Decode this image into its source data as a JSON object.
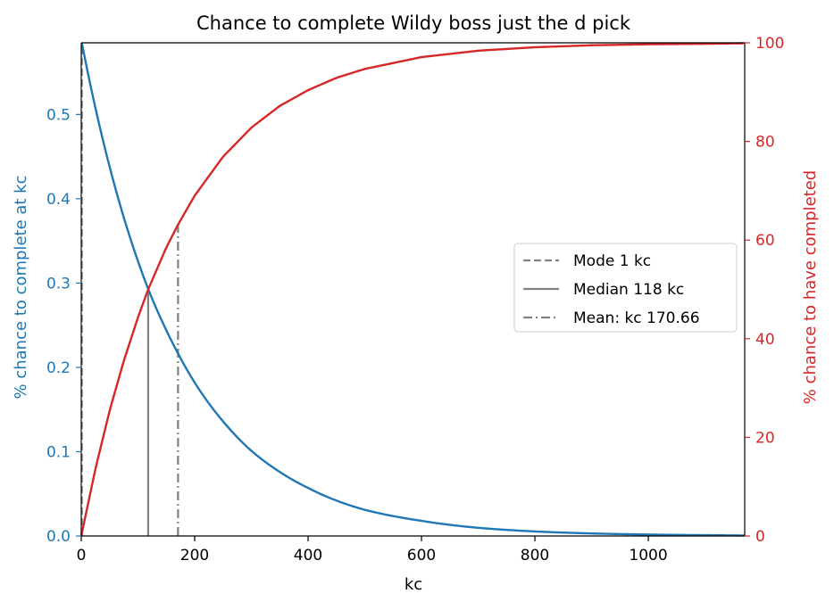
{
  "chart_data": {
    "type": "line",
    "title": "Chance to complete Wildy boss just the d pick",
    "xlabel": "kc",
    "ylabel_left": "% chance to complete at kc",
    "ylabel_right": "% chance to have completed",
    "xlim": [
      0,
      1170
    ],
    "ylim_left": [
      0,
      0.585
    ],
    "ylim_right": [
      0,
      100
    ],
    "x_ticks": [
      0,
      200,
      400,
      600,
      800,
      1000
    ],
    "y_left_ticks": [
      0.0,
      0.1,
      0.2,
      0.3,
      0.4,
      0.5
    ],
    "y_right_ticks": [
      0,
      20,
      40,
      60,
      80,
      100
    ],
    "grid": false,
    "legend_position": "center-right",
    "colors": {
      "left": "#1f77b4",
      "right": "#d62728",
      "marker": "#808080"
    },
    "series": [
      {
        "axis": "left",
        "color": "#1f77b4",
        "x": [
          1,
          50,
          100,
          118,
          150,
          171,
          200,
          250,
          300,
          350,
          400,
          450,
          500,
          600,
          700,
          800,
          900,
          1000,
          1100,
          1170
        ],
        "y": [
          0.585,
          0.438,
          0.326,
          0.293,
          0.244,
          0.216,
          0.182,
          0.136,
          0.101,
          0.076,
          0.057,
          0.042,
          0.031,
          0.018,
          0.0097,
          0.0054,
          0.003,
          0.0017,
          0.001,
          0.0006
        ]
      },
      {
        "axis": "right",
        "color": "#d62728",
        "x": [
          0,
          25,
          50,
          75,
          100,
          118,
          150,
          171,
          200,
          250,
          300,
          350,
          400,
          450,
          500,
          600,
          700,
          800,
          900,
          1000,
          1100,
          1170
        ],
        "y": [
          0,
          13.6,
          25.4,
          35.5,
          44.3,
          50.0,
          58.5,
          63.2,
          69.0,
          76.9,
          82.8,
          87.2,
          90.4,
          92.9,
          94.7,
          97.1,
          98.4,
          99.1,
          99.5,
          99.7,
          99.8,
          99.9
        ]
      }
    ],
    "markers": [
      {
        "label": "Mode 1 kc",
        "x": 1,
        "style": "dashed"
      },
      {
        "label": "Median 118 kc",
        "x": 118,
        "style": "solid"
      },
      {
        "label": "Mean: kc 170.66",
        "x": 170.66,
        "style": "dashdot"
      }
    ]
  }
}
